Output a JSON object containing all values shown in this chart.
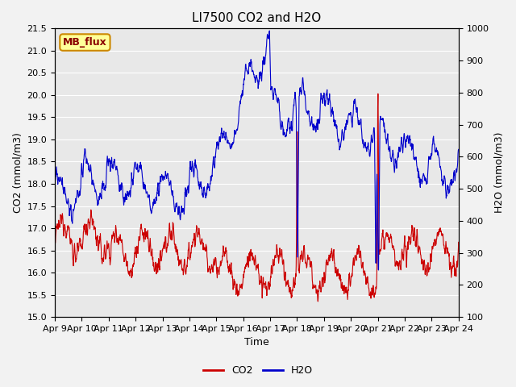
{
  "title": "LI7500 CO2 and H2O",
  "xlabel": "Time",
  "ylabel_left": "CO2 (mmol/m3)",
  "ylabel_right": "H2O (mmol/m3)",
  "ylim_left": [
    15.0,
    21.5
  ],
  "ylim_right": [
    100,
    1000
  ],
  "yticks_left": [
    15.0,
    15.5,
    16.0,
    16.5,
    17.0,
    17.5,
    18.0,
    18.5,
    19.0,
    19.5,
    20.0,
    20.5,
    21.0,
    21.5
  ],
  "yticks_right": [
    100,
    200,
    300,
    400,
    500,
    600,
    700,
    800,
    900,
    1000
  ],
  "xtick_labels": [
    "Apr 9",
    "Apr 10",
    "Apr 11",
    "Apr 12",
    "Apr 13",
    "Apr 14",
    "Apr 15",
    "Apr 16",
    "Apr 17",
    "Apr 18",
    "Apr 19",
    "Apr 20",
    "Apr 21",
    "Apr 22",
    "Apr 23",
    "Apr 24"
  ],
  "legend_label_box": "MB_flux",
  "legend_box_bg": "#FFFF99",
  "legend_box_border": "#CC8800",
  "co2_color": "#CC0000",
  "h2o_color": "#0000CC",
  "plot_bg_color": "#E8E8E8",
  "fig_bg_color": "#F2F2F2",
  "grid_color": "#FFFFFF",
  "linewidth": 0.8,
  "figsize": [
    6.4,
    4.8
  ],
  "dpi": 100
}
